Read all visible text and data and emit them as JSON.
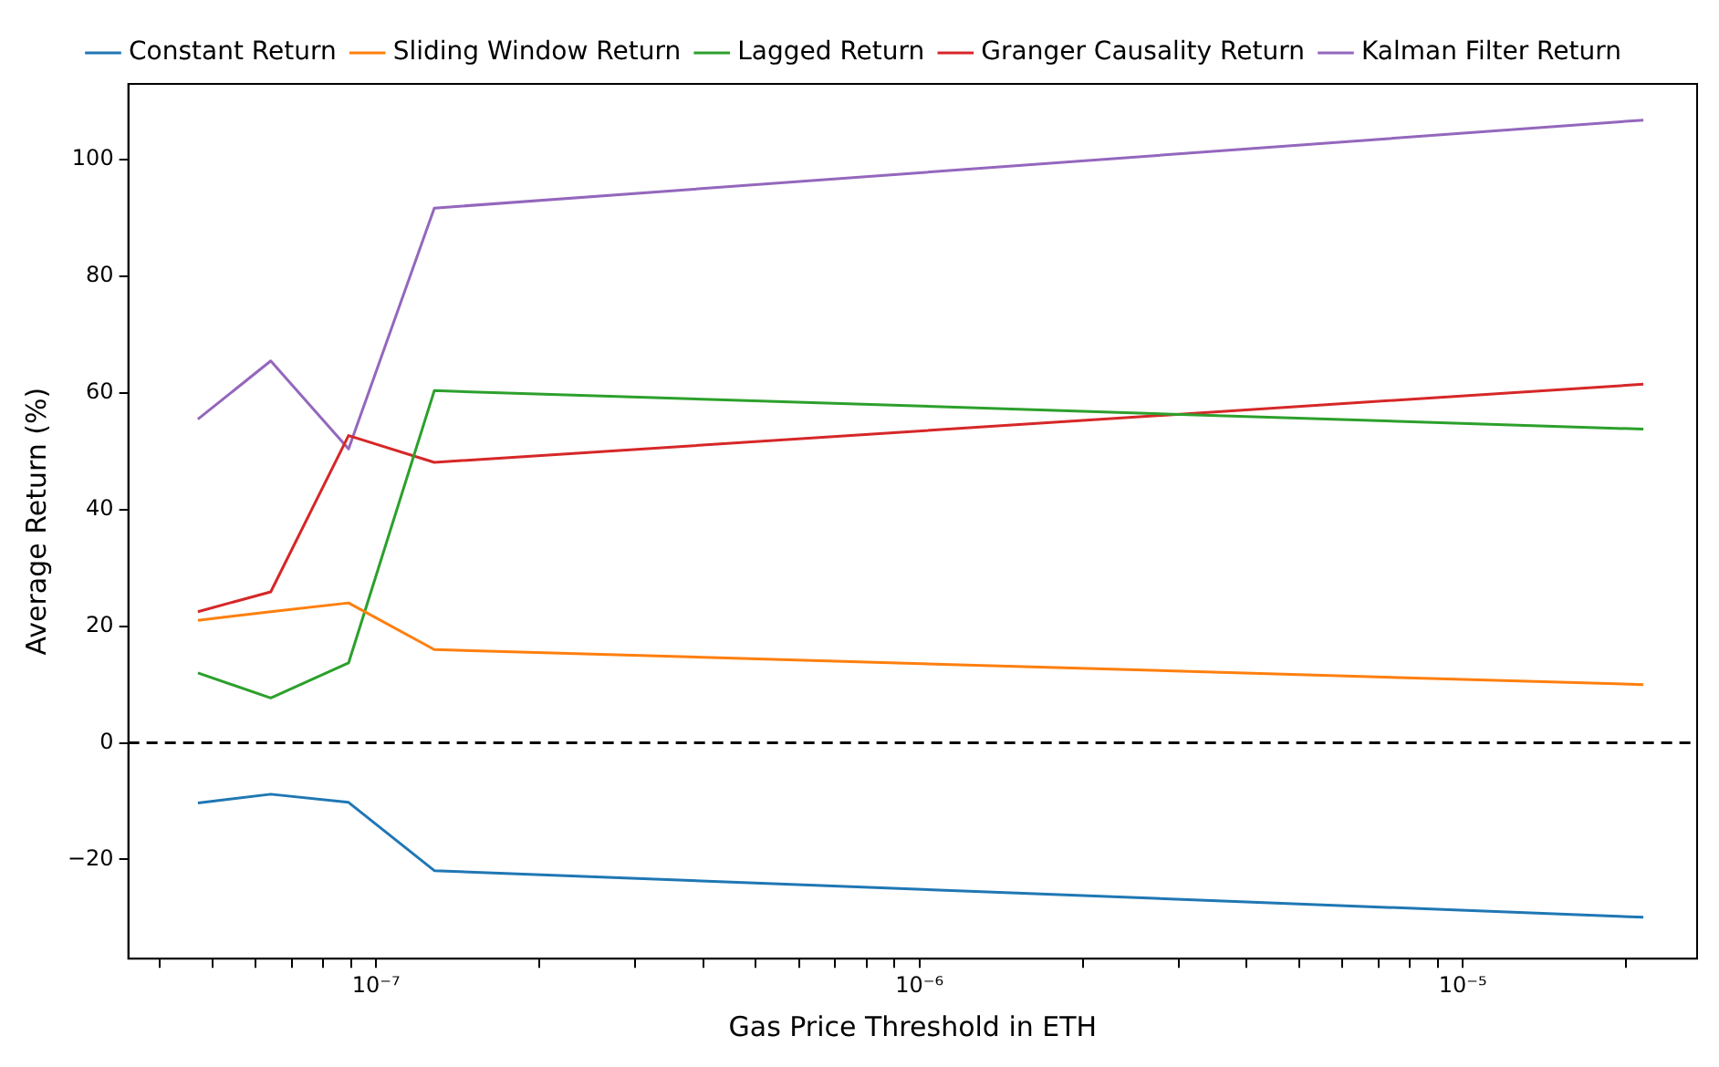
{
  "chart_data": {
    "type": "line",
    "xlabel": "Gas Price Threshold in ETH",
    "ylabel": "Average Return (%)",
    "log": "x",
    "x": [
      4.7e-08,
      6.4e-08,
      8.9e-08,
      1.28e-07,
      2.15e-05
    ],
    "xlim": [
      3.5e-08,
      2.7e-05
    ],
    "xticks": [
      {
        "value": 4e-08,
        "label": null
      },
      {
        "value": 5e-08,
        "label": null
      },
      {
        "value": 6e-08,
        "label": null
      },
      {
        "value": 7e-08,
        "label": null
      },
      {
        "value": 8e-08,
        "label": null
      },
      {
        "value": 9e-08,
        "label": null
      },
      {
        "value": 1e-07,
        "label": "10⁻⁷"
      },
      {
        "value": 2e-07,
        "label": null
      },
      {
        "value": 3e-07,
        "label": null
      },
      {
        "value": 4e-07,
        "label": null
      },
      {
        "value": 5e-07,
        "label": null
      },
      {
        "value": 6e-07,
        "label": null
      },
      {
        "value": 7e-07,
        "label": null
      },
      {
        "value": 8e-07,
        "label": null
      },
      {
        "value": 9e-07,
        "label": null
      },
      {
        "value": 1e-06,
        "label": "10⁻⁶"
      },
      {
        "value": 2e-06,
        "label": null
      },
      {
        "value": 3e-06,
        "label": null
      },
      {
        "value": 4e-06,
        "label": null
      },
      {
        "value": 5e-06,
        "label": null
      },
      {
        "value": 6e-06,
        "label": null
      },
      {
        "value": 7e-06,
        "label": null
      },
      {
        "value": 8e-06,
        "label": null
      },
      {
        "value": 9e-06,
        "label": null
      },
      {
        "value": 1e-05,
        "label": "10⁻⁵"
      },
      {
        "value": 2e-05,
        "label": null
      }
    ],
    "ylim": [
      -37,
      113
    ],
    "yticks": [
      -20,
      0,
      20,
      40,
      60,
      80,
      100
    ],
    "legend": "top",
    "grid": false,
    "ref_lines": [
      {
        "axis": "y",
        "value": 0,
        "color": "#000000",
        "line_style": "dashed"
      }
    ],
    "series": [
      {
        "name": "Constant Return",
        "color": "#1f77b4",
        "values": [
          -10.3,
          -8.8,
          -10.2,
          -21.9,
          -29.9
        ]
      },
      {
        "name": "Sliding Window Return",
        "color": "#ff7f0e",
        "values": [
          21,
          22.5,
          24,
          16,
          10
        ]
      },
      {
        "name": "Lagged Return",
        "color": "#2ca02c",
        "values": [
          12,
          7.7,
          13.7,
          60.4,
          53.8
        ]
      },
      {
        "name": "Granger Causality Return",
        "color": "#d62728",
        "values": [
          22.5,
          25.9,
          52.7,
          48.1,
          61.5
        ]
      },
      {
        "name": "Kalman Filter Return",
        "color": "#9467bd",
        "values": [
          55.5,
          65.5,
          50.4,
          91.7,
          106.8
        ]
      }
    ]
  }
}
